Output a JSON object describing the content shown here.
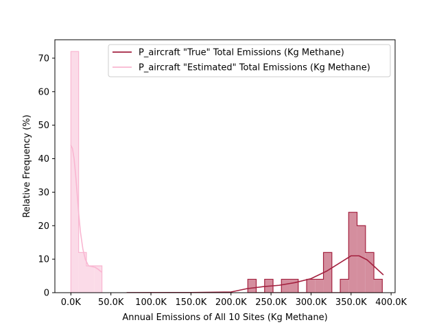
{
  "chart_data": {
    "type": "histogram",
    "title": "",
    "xlabel": "Annual Emissions of All 10 Sites (Kg Methane)",
    "ylabel": "Relative Frequency (%)",
    "xlim": [
      -20000,
      405000
    ],
    "ylim": [
      0,
      75.5
    ],
    "grid": false,
    "legend_position": "top-right",
    "x_ticks": [
      0,
      50000,
      100000,
      150000,
      200000,
      250000,
      300000,
      350000,
      400000
    ],
    "x_tick_labels": [
      "0.0K",
      "50.0K",
      "100.0K",
      "150.0K",
      "200.0K",
      "250.0K",
      "300.0K",
      "350.0K",
      "400.0K"
    ],
    "y_ticks": [
      0,
      10,
      20,
      30,
      40,
      50,
      60,
      70
    ],
    "y_tick_labels": [
      "0",
      "10",
      "20",
      "30",
      "40",
      "50",
      "60",
      "70"
    ],
    "series": [
      {
        "name": "P_aircraft \"True\" Total Emissions (Kg Methane)",
        "color": "#a3213f",
        "fill": "#d48e9e",
        "bin_edges": [
          221000,
          231500,
          242000,
          252500,
          263000,
          273500,
          284000,
          294500,
          305000,
          315500,
          326000,
          336500,
          347000,
          357500,
          368000,
          378500,
          389000
        ],
        "values": [
          4,
          0,
          4,
          0,
          4,
          4,
          0,
          4,
          4,
          12,
          0,
          4,
          24,
          20,
          12,
          4
        ],
        "kde": {
          "x": [
            70000,
            150000,
            200000,
            220000,
            240000,
            260000,
            280000,
            300000,
            320000,
            340000,
            350000,
            360000,
            370000,
            380000,
            390000
          ],
          "y": [
            0.02,
            0.05,
            0.2,
            1.2,
            1.8,
            2.2,
            3.0,
            4.2,
            6.5,
            9.5,
            11.0,
            11.0,
            9.8,
            7.6,
            5.4
          ]
        }
      },
      {
        "name": "P_aircraft \"Estimated\" Total Emissions (Kg Methane)",
        "color": "#f9b6d1",
        "fill": "#fbdbe8",
        "bin_edges": [
          0,
          9700,
          19400,
          29100,
          38800
        ],
        "values": [
          72,
          12,
          8,
          8
        ],
        "kde": {
          "x": [
            0,
            2000,
            4000,
            6000,
            8000,
            10000,
            12000,
            15000,
            18000,
            22000,
            26000,
            30000,
            34000,
            38000
          ],
          "y": [
            44,
            43,
            40,
            35,
            29,
            23,
            18,
            13,
            10,
            8,
            7.8,
            7.6,
            7.0,
            6.2
          ]
        }
      }
    ]
  }
}
